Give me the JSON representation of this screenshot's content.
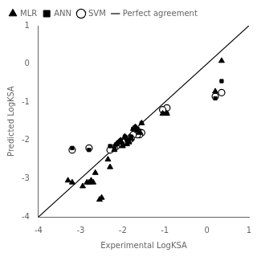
{
  "chart_data": {
    "type": "scatter",
    "xlabel": "Experimental LogKSA",
    "ylabel": "Predicted LogKSA",
    "xlim": [
      -4,
      1
    ],
    "ylim": [
      -4,
      1
    ],
    "xticks": [
      -4,
      -3,
      -2,
      -1,
      0,
      1
    ],
    "yticks": [
      -4,
      -3,
      -2,
      -1,
      0,
      1
    ],
    "grid": false,
    "legend": "upper left",
    "series": [
      {
        "name": "MLR",
        "type": "scatter",
        "marker": "triangle",
        "color": "#000000",
        "x": [
          0.35,
          0.2,
          -0.95,
          -1.05,
          -1.55,
          -1.6,
          -1.65,
          -1.7,
          -1.75,
          -1.8,
          -1.85,
          -1.9,
          -1.95,
          -2.0,
          -2.05,
          -2.1,
          -2.15,
          -2.2,
          -2.3,
          -2.35,
          -2.5,
          -2.55,
          -2.65,
          -2.7,
          -2.75,
          -2.8,
          -2.85,
          -2.95,
          -3.2,
          -3.3
        ],
        "values": [
          0.08,
          -0.72,
          -1.3,
          -1.3,
          -1.55,
          -1.8,
          -1.75,
          -1.65,
          -1.7,
          -1.95,
          -2.05,
          -2.1,
          -1.9,
          -2.15,
          -2.0,
          -2.05,
          -2.1,
          -2.25,
          -2.7,
          -2.5,
          -3.5,
          -3.55,
          -2.85,
          -3.1,
          -3.05,
          -3.1,
          -3.1,
          -3.2,
          -3.1,
          -3.05
        ]
      },
      {
        "name": "ANN",
        "type": "scatter",
        "marker": "square",
        "color": "#000000",
        "x": [
          0.35,
          0.2,
          -0.95,
          -1.05,
          -1.55,
          -1.6,
          -1.65,
          -1.7,
          -1.75,
          -1.8,
          -1.85,
          -1.9,
          -1.95,
          -2.0,
          -2.05,
          -2.1,
          -2.15,
          -2.2,
          -2.3,
          -2.8,
          -3.2
        ],
        "values": [
          -0.45,
          -0.9,
          -1.3,
          -1.3,
          -1.55,
          -1.75,
          -1.7,
          -1.65,
          -1.7,
          -1.9,
          -2.0,
          -2.0,
          -1.9,
          -2.1,
          -2.0,
          -2.05,
          -2.1,
          -2.2,
          -2.15,
          -2.25,
          -2.2
        ]
      },
      {
        "name": "SVM",
        "type": "scatter",
        "marker": "open_circle",
        "color": "#000000",
        "x": [
          0.35,
          0.2,
          -0.95,
          -1.05,
          -1.55,
          -1.6,
          -1.65,
          -1.7,
          -1.75,
          -1.8,
          -1.85,
          -1.9,
          -1.95,
          -2.0,
          -2.05,
          -2.1,
          -2.15,
          -2.2,
          -2.3,
          -2.8,
          -3.2
        ],
        "values": [
          -0.75,
          -0.85,
          -1.15,
          -1.2,
          -1.8,
          -1.85,
          -1.85,
          -1.75,
          -1.85,
          -1.95,
          -2.0,
          -2.0,
          -2.05,
          -2.05,
          -2.1,
          -2.1,
          -2.15,
          -2.2,
          -2.25,
          -2.2,
          -2.25
        ]
      },
      {
        "name": "Perfect agreement",
        "type": "line",
        "line_style": "solid",
        "color": "#000000",
        "x": [
          -4,
          1
        ],
        "values": [
          -4,
          1
        ]
      }
    ]
  }
}
